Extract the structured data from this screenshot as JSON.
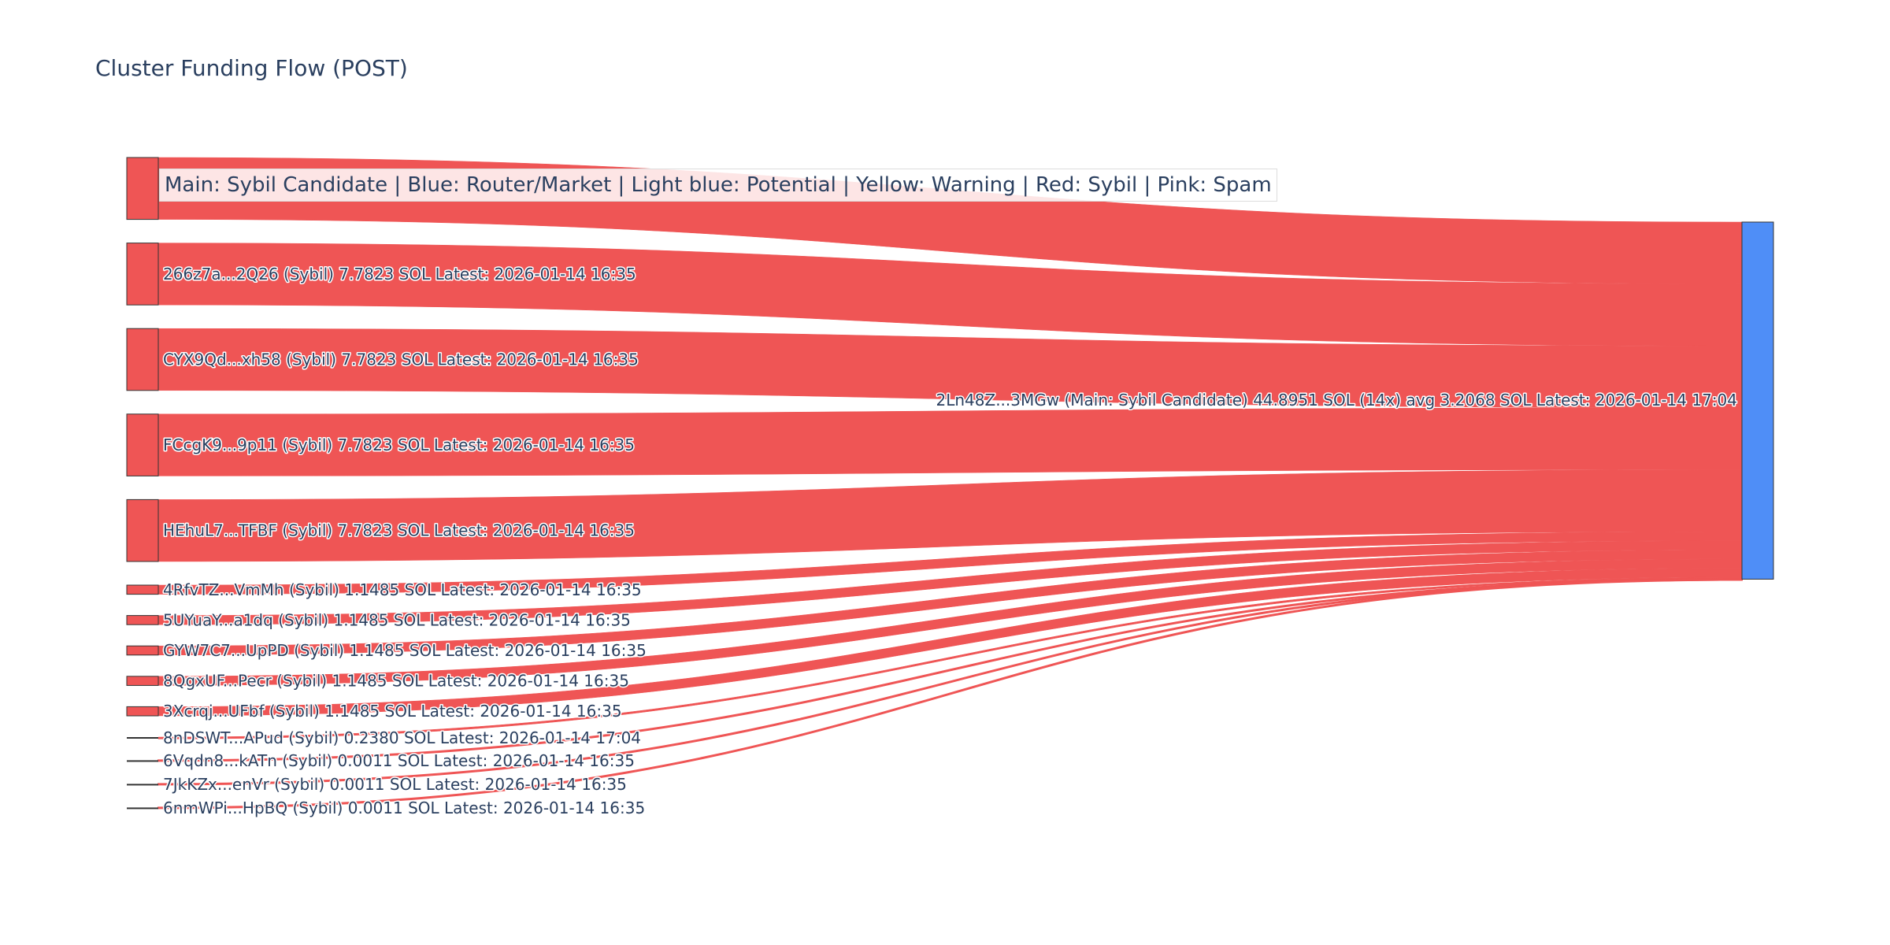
{
  "chart_data": {
    "type": "sankey",
    "title": "Cluster Funding Flow (POST)",
    "legend_text": "Main: Sybil Candidate | Blue: Router/Market | Light blue: Potential | Yellow: Warning | Red: Sybil | Pink: Spam",
    "unit": "SOL",
    "colors": {
      "sybil_node": "#ef5555",
      "target_node": "#4f8ef7",
      "link": "#ef5555",
      "node_border": "#333333"
    },
    "target": {
      "name": "2Ln48Z...3MGw",
      "label": "2Ln48Z...3MGw (Main: Sybil Candidate) 44.8951 SOL (14x) avg 3.2068 SOL Latest: 2026-01-14 17:04",
      "total": 44.8951,
      "count": 14,
      "average": 3.2068
    },
    "sources": [
      {
        "name": "",
        "label": "",
        "value": 7.7823
      },
      {
        "name": "266z7a...2Q26",
        "label": "266z7a...2Q26 (Sybil) 7.7823 SOL Latest: 2026-01-14 16:35",
        "value": 7.7823
      },
      {
        "name": "CYX9Qd...xh58",
        "label": "CYX9Qd...xh58 (Sybil) 7.7823 SOL Latest: 2026-01-14 16:35",
        "value": 7.7823
      },
      {
        "name": "FCcgK9...9p11",
        "label": "FCcgK9...9p11 (Sybil) 7.7823 SOL Latest: 2026-01-14 16:35",
        "value": 7.7823
      },
      {
        "name": "HEhuL7...TFBF",
        "label": "HEhuL7...TFBF (Sybil) 7.7823 SOL Latest: 2026-01-14 16:35",
        "value": 7.7823
      },
      {
        "name": "4RfvTZ...VmMh",
        "label": "4RfvTZ...VmMh (Sybil) 1.1485 SOL Latest: 2026-01-14 16:35",
        "value": 1.1485
      },
      {
        "name": "5UYuaY...a1dq",
        "label": "5UYuaY...a1dq (Sybil) 1.1485 SOL Latest: 2026-01-14 16:35",
        "value": 1.1485
      },
      {
        "name": "GYW7C7...UpPD",
        "label": "GYW7C7...UpPD (Sybil) 1.1485 SOL Latest: 2026-01-14 16:35",
        "value": 1.1485
      },
      {
        "name": "8QgxUF...Pecr",
        "label": "8QgxUF...Pecr (Sybil) 1.1485 SOL Latest: 2026-01-14 16:35",
        "value": 1.1485
      },
      {
        "name": "3Xcrqj...UFbf",
        "label": "3Xcrqj...UFbf (Sybil) 1.1485 SOL Latest: 2026-01-14 16:35",
        "value": 1.1485
      },
      {
        "name": "8nDSWT...APud",
        "label": "8nDSWT...APud (Sybil) 0.2380 SOL Latest: 2026-01-14 17:04",
        "value": 0.238
      },
      {
        "name": "6Vqdn8...kATn",
        "label": "6Vqdn8...kATn (Sybil) 0.0011 SOL Latest: 2026-01-14 16:35",
        "value": 0.0011
      },
      {
        "name": "7JkKZx...enVr",
        "label": "7JkKZx...enVr (Sybil) 0.0011 SOL Latest: 2026-01-14 16:35",
        "value": 0.0011
      },
      {
        "name": "6nmWPi...HpBQ",
        "label": "6nmWPi...HpBQ (Sybil) 0.0011 SOL Latest: 2026-01-14 16:35",
        "value": 0.0011
      }
    ]
  }
}
